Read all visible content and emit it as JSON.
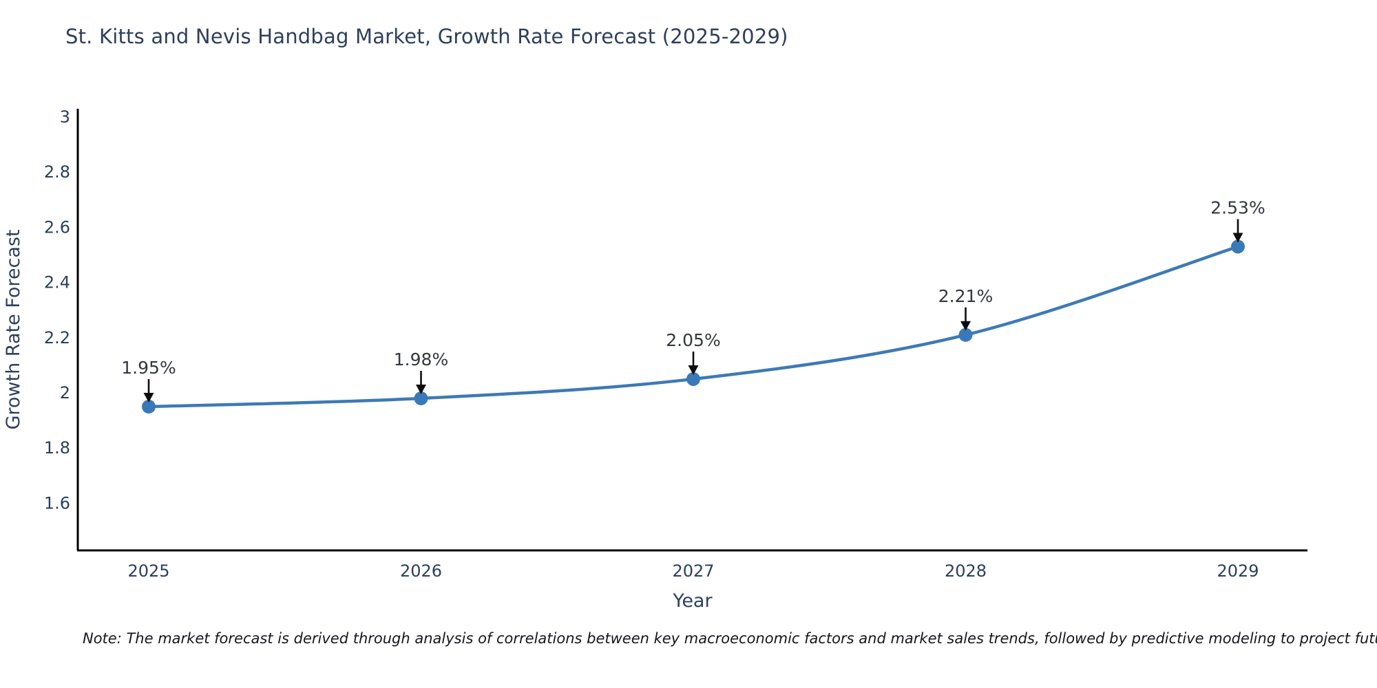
{
  "title": "St. Kitts and Nevis Handbag Market, Growth Rate Forecast (2025-2029)",
  "note": "Note: The market forecast is derived through analysis of correlations between key macroeconomic factors and market sales trends, followed by predictive modeling to project future sales",
  "chart_data": {
    "type": "line",
    "title": "St. Kitts and Nevis Handbag Market, Growth Rate Forecast (2025-2029)",
    "x": [
      2025,
      2026,
      2027,
      2028,
      2029
    ],
    "values": [
      1.95,
      1.98,
      2.05,
      2.21,
      2.53
    ],
    "series": [
      {
        "name": "Growth Rate Forecast",
        "values": [
          1.95,
          1.98,
          2.05,
          2.21,
          2.53
        ]
      }
    ],
    "point_labels": [
      "1.95%",
      "1.98%",
      "2.05%",
      "2.21%",
      "2.53%"
    ],
    "xlabel": "Year",
    "ylabel": "Growth Rate Forecast",
    "xtick_labels": [
      "2025",
      "2026",
      "2027",
      "2028",
      "2029"
    ],
    "yticks": [
      3,
      2.8,
      2.6,
      2.4,
      2.2,
      2,
      1.8,
      1.6
    ],
    "ytick_labels": [
      "3",
      "2.8",
      "2.6",
      "2.4",
      "2.2",
      "2",
      "1.8",
      "1.6"
    ],
    "ylim": [
      1.43,
      3.0
    ],
    "grid": false,
    "legend_position": "none",
    "line_shape": "spline",
    "colors": {
      "line": "#3d7ab5",
      "marker": "#3a79b8",
      "axis": "#000000",
      "tick_text": "#2a3f5f",
      "axis_title_text": "#2e3f5c",
      "annotation_text": "#33373f",
      "arrow": "#0d0d0d",
      "background": "#ffffff"
    }
  }
}
